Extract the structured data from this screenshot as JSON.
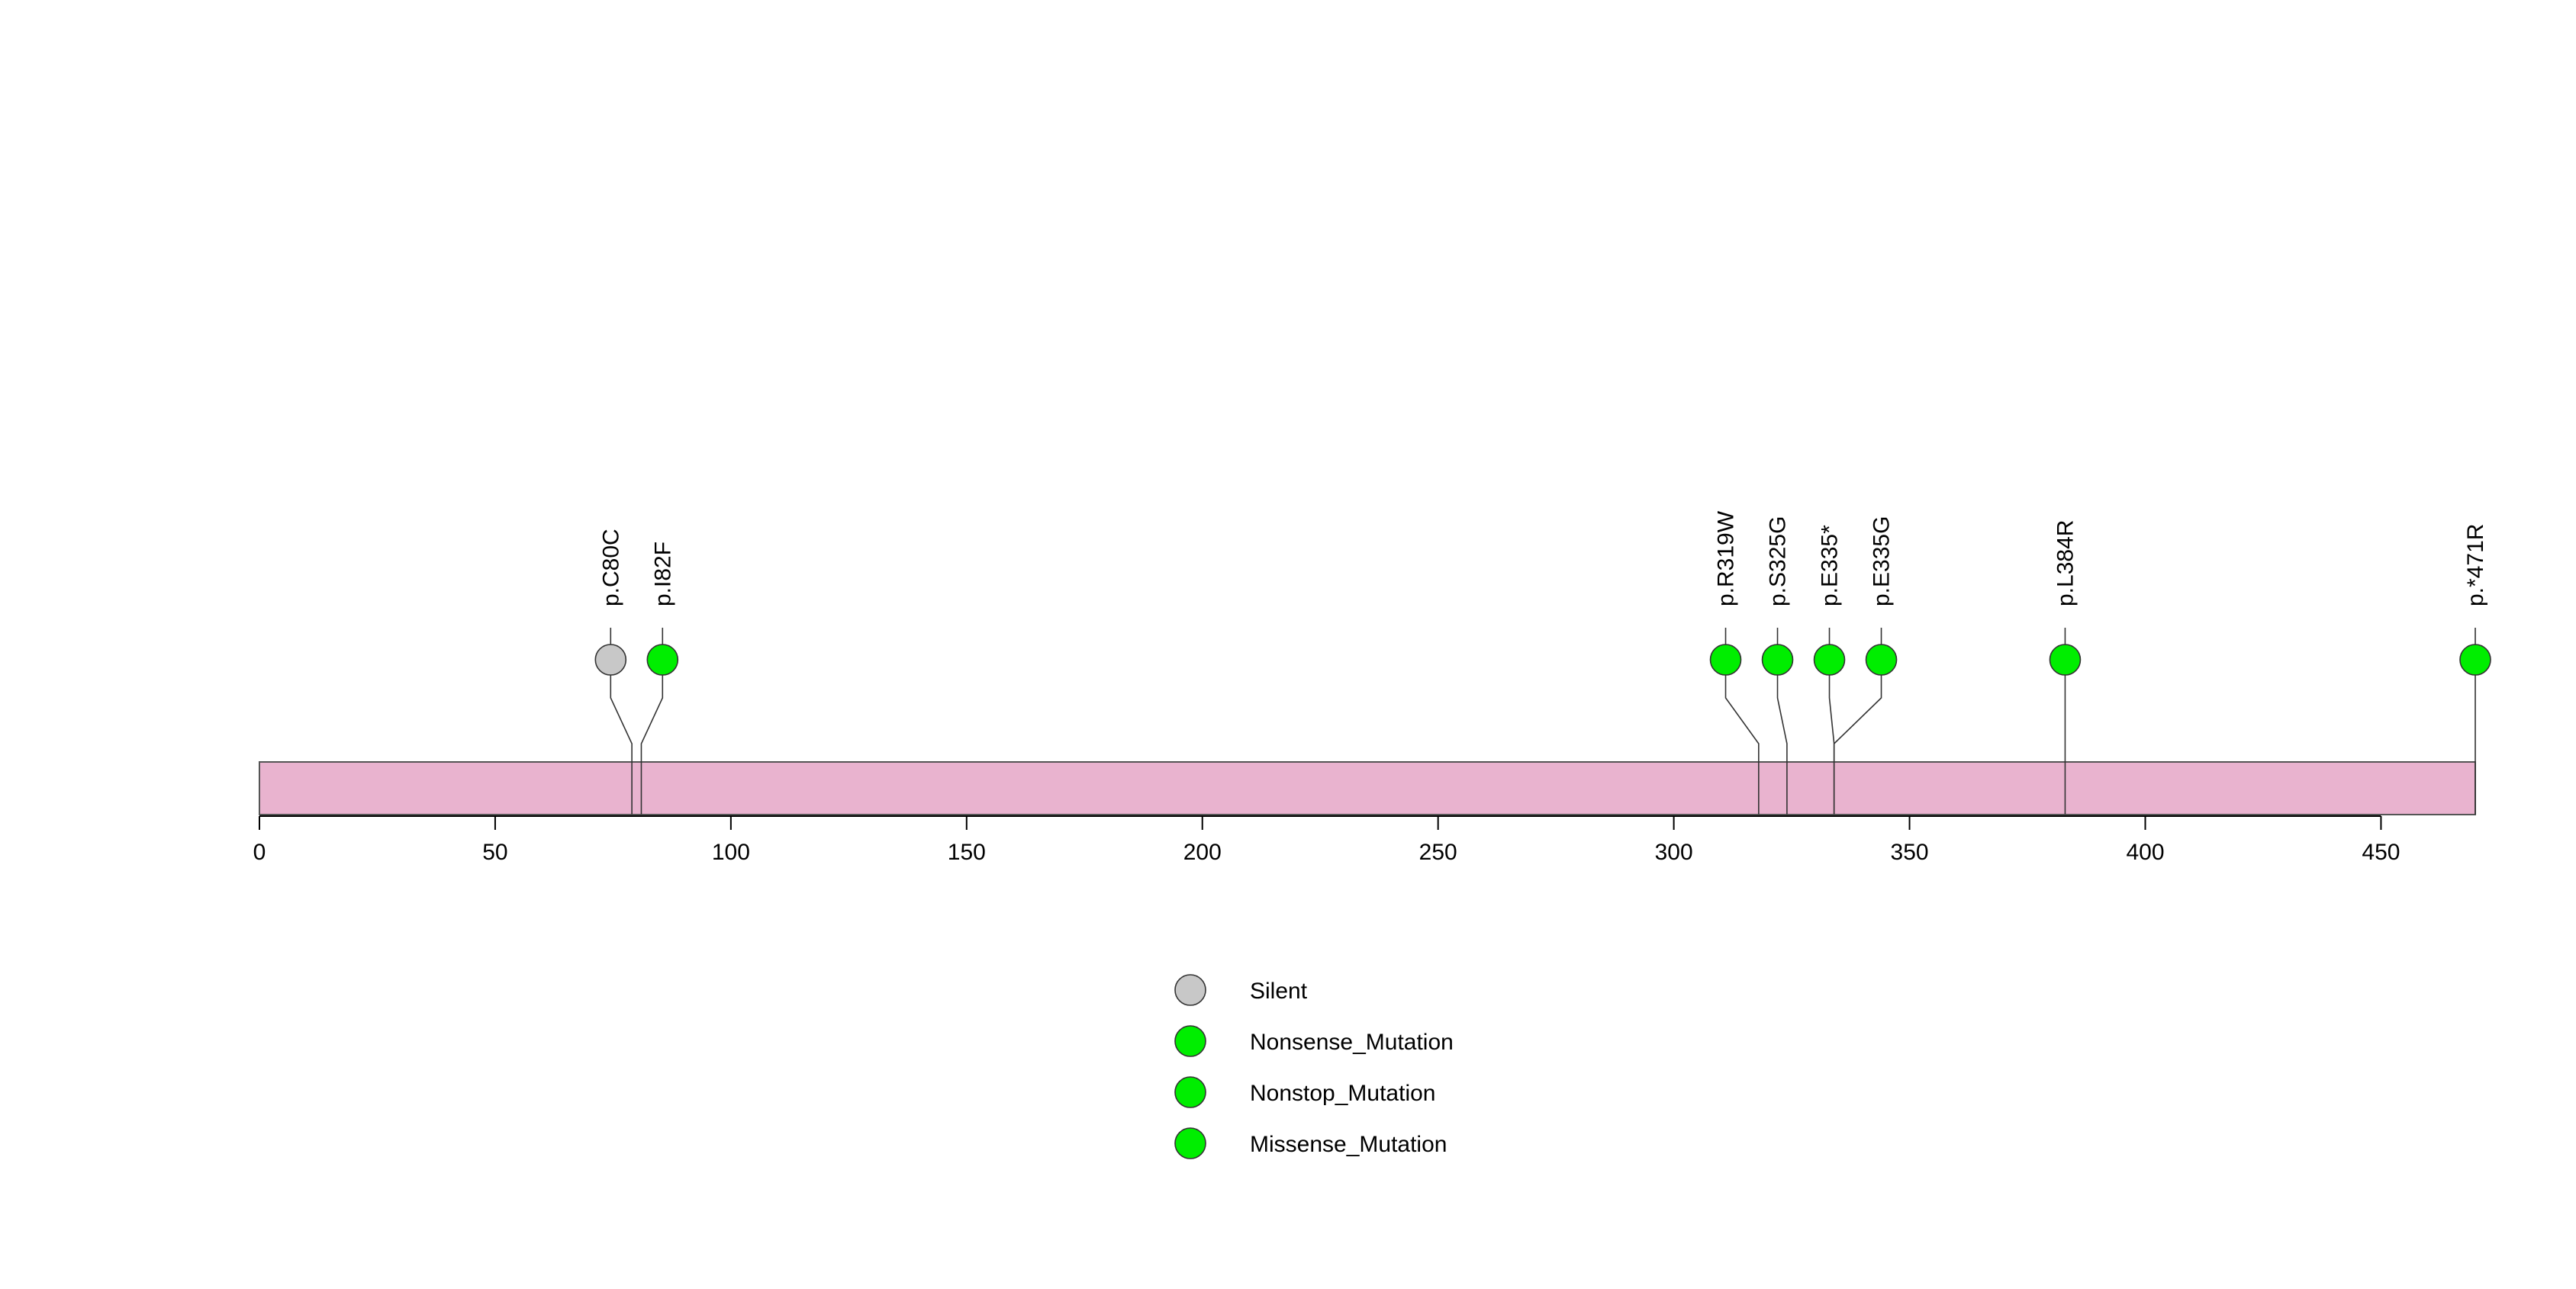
{
  "chart_data": {
    "type": "lollipop",
    "title": "",
    "xlabel": "",
    "ylabel": "",
    "xlim": [
      0,
      470
    ],
    "x_ticks": [
      0,
      50,
      100,
      150,
      200,
      250,
      300,
      350,
      400,
      450
    ],
    "protein_length": 470,
    "protein_color": "#e9b3cf",
    "mutations": [
      {
        "label": "p.C80C",
        "position": 79,
        "type": "Silent"
      },
      {
        "label": "p.I82F",
        "position": 81,
        "type": "Missense_Mutation"
      },
      {
        "label": "p.R319W",
        "position": 318,
        "type": "Missense_Mutation"
      },
      {
        "label": "p.S325G",
        "position": 324,
        "type": "Missense_Mutation"
      },
      {
        "label": "p.E335*",
        "position": 334,
        "type": "Nonsense_Mutation"
      },
      {
        "label": "p.E335G",
        "position": 334,
        "type": "Missense_Mutation"
      },
      {
        "label": "p.L384R",
        "position": 383,
        "type": "Missense_Mutation"
      },
      {
        "label": "p.*471R",
        "position": 470,
        "type": "Nonstop_Mutation"
      }
    ],
    "legend": {
      "placement": "bottom-center",
      "entries": [
        {
          "name": "Silent",
          "color": "#c8c8c8"
        },
        {
          "name": "Nonsense_Mutation",
          "color": "#00ee00"
        },
        {
          "name": "Nonstop_Mutation",
          "color": "#00ee00"
        },
        {
          "name": "Missense_Mutation",
          "color": "#00ee00"
        }
      ]
    }
  }
}
